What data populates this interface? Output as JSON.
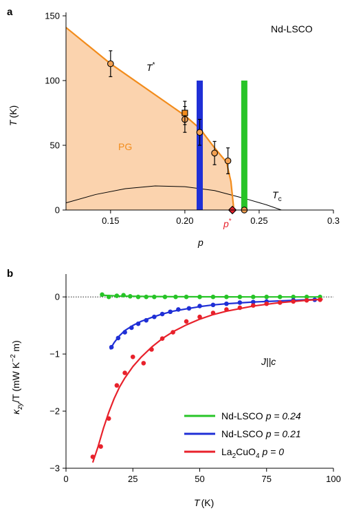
{
  "chart_data": [
    {
      "panel": "a",
      "type": "area",
      "xlabel": "p",
      "ylabel": "T (K)",
      "ylabel_var": "T",
      "ylabel_unit": "(K)",
      "xlim": [
        0.12,
        0.3
      ],
      "ylim": [
        0,
        150
      ],
      "xticks": [
        0.15,
        0.2,
        0.25,
        0.3
      ],
      "xtick_labels": [
        "0.15",
        "0.20",
        "0.25",
        "0.3"
      ],
      "yticks": [
        0,
        50,
        100,
        150
      ],
      "ytick_labels": [
        "0",
        "50",
        "100",
        "150"
      ],
      "corner_label": "Nd-LSCO",
      "region_label": "PG",
      "tstar_label": "T",
      "tc_label": "T",
      "tc_sub": "c",
      "pstar_label": "p",
      "star": "*",
      "tstar_line": [
        [
          0.12,
          141
        ],
        [
          0.15,
          113
        ],
        [
          0.2,
          73
        ],
        [
          0.21,
          63
        ],
        [
          0.22,
          48
        ],
        [
          0.228,
          37
        ],
        [
          0.231,
          22
        ],
        [
          0.233,
          0
        ]
      ],
      "tc_dome": [
        [
          0.12,
          5.5
        ],
        [
          0.14,
          12
        ],
        [
          0.16,
          16.5
        ],
        [
          0.18,
          18.6
        ],
        [
          0.2,
          18
        ],
        [
          0.22,
          15
        ],
        [
          0.24,
          9
        ],
        [
          0.255,
          4
        ],
        [
          0.265,
          0
        ]
      ],
      "points": [
        {
          "p": 0.15,
          "T": 113,
          "err": 10,
          "marker": "circle"
        },
        {
          "p": 0.2,
          "T": 70,
          "err": 10,
          "marker": "circle"
        },
        {
          "p": 0.21,
          "T": 60,
          "err": 10,
          "marker": "circle"
        },
        {
          "p": 0.22,
          "T": 44,
          "err": 9,
          "marker": "circle"
        },
        {
          "p": 0.229,
          "T": 38,
          "err": 10,
          "marker": "circle"
        },
        {
          "p": 0.24,
          "T": 0,
          "err": 0,
          "marker": "circle"
        },
        {
          "p": 0.2,
          "T": 75,
          "err": 9,
          "marker": "square"
        },
        {
          "p": 0.232,
          "T": 0,
          "err": 0,
          "marker": "diamond"
        }
      ],
      "bars": [
        {
          "p": 0.21,
          "T": 100,
          "color": "#1f2fd6"
        },
        {
          "p": 0.24,
          "T": 100,
          "color": "#27c427"
        }
      ],
      "colors": {
        "line": "#f28c1c",
        "fill": "#fbd3ae",
        "marker": "#f2a052",
        "pstar": "#e8212b"
      }
    },
    {
      "panel": "b",
      "type": "scatter",
      "xlabel": "T (K)",
      "xlabel_var": "T",
      "xlabel_unit": "(K)",
      "ylabel_sym": "κ",
      "ylabel_sub": "zy",
      "ylabel_rest": "/T (mW K",
      "ylabel_exp": "−2",
      "ylabel_end": " m)",
      "xlim": [
        0,
        100
      ],
      "ylim": [
        -3,
        0.4
      ],
      "xticks": [
        0,
        25,
        50,
        75,
        100
      ],
      "xtick_labels": [
        "0",
        "25",
        "50",
        "75",
        "100"
      ],
      "yticks": [
        0,
        -1,
        -2,
        -3
      ],
      "ytick_labels": [
        "0",
        "−1",
        "−2",
        "−3"
      ],
      "annotation": "J||c",
      "series": [
        {
          "name": "Nd-LSCO p = 0.24",
          "name_base": "Nd-LSCO",
          "name_p": "p = 0.24",
          "color": "#27c427",
          "x": [
            13.5,
            16,
            19,
            21.5,
            24,
            27,
            30,
            33,
            37,
            41,
            45,
            50,
            55,
            60,
            65,
            70,
            75,
            80,
            85,
            90,
            95
          ],
          "y": [
            0.04,
            0.0,
            0.02,
            0.03,
            0.01,
            0.0,
            0.0,
            0.0,
            0.0,
            0.0,
            0.0,
            0.0,
            0.0,
            0.0,
            0.0,
            0.0,
            0.0,
            0.0,
            0.0,
            0.0,
            0.0
          ],
          "fit_x": [
            13.5,
            20,
            30,
            40,
            50,
            60,
            70,
            80,
            90,
            95
          ],
          "fit_y": [
            0.03,
            0.015,
            0.008,
            0.004,
            0.002,
            0.001,
            0.0,
            0.0,
            0.0,
            0.0
          ]
        },
        {
          "name": "Nd-LSCO p = 0.21",
          "name_base": "Nd-LSCO",
          "name_p": "p = 0.21",
          "color": "#1f2fd6",
          "x": [
            17,
            19.5,
            22,
            24.5,
            27,
            30,
            33,
            36,
            39,
            42,
            46,
            50,
            55,
            60,
            65,
            70,
            75,
            85,
            93
          ],
          "y": [
            -0.88,
            -0.72,
            -0.62,
            -0.54,
            -0.47,
            -0.41,
            -0.35,
            -0.3,
            -0.26,
            -0.22,
            -0.2,
            -0.16,
            -0.14,
            -0.12,
            -0.1,
            -0.09,
            -0.08,
            -0.06,
            -0.05
          ],
          "fit_x": [
            16.5,
            18,
            20,
            22,
            25,
            28,
            32,
            36,
            40,
            45,
            50,
            55,
            60,
            70,
            80,
            90,
            95
          ],
          "fit_y": [
            -0.92,
            -0.8,
            -0.68,
            -0.59,
            -0.5,
            -0.43,
            -0.36,
            -0.3,
            -0.25,
            -0.21,
            -0.17,
            -0.14,
            -0.12,
            -0.09,
            -0.07,
            -0.05,
            -0.045
          ]
        },
        {
          "name": "La2CuO4 p = 0",
          "name_base": "La",
          "name_sub1": "2",
          "name_mid": "CuO",
          "name_sub2": "4",
          "name_p": "p = 0",
          "color": "#e8212b",
          "x": [
            10,
            13,
            16,
            19,
            22,
            25,
            29,
            32,
            36,
            40,
            45,
            50,
            55,
            60,
            65,
            70,
            75,
            80,
            85,
            90,
            95
          ],
          "y": [
            -2.8,
            -2.62,
            -2.13,
            -1.55,
            -1.33,
            -1.05,
            -1.16,
            -0.92,
            -0.73,
            -0.62,
            -0.43,
            -0.35,
            -0.28,
            -0.22,
            -0.19,
            -0.15,
            -0.12,
            -0.1,
            -0.08,
            -0.06,
            -0.05
          ],
          "fit_x": [
            10,
            12,
            14,
            16,
            18,
            20,
            22,
            25,
            28,
            32,
            36,
            40,
            45,
            50,
            55,
            60,
            70,
            80,
            90,
            96
          ],
          "fit_y": [
            -2.9,
            -2.62,
            -2.3,
            -2.02,
            -1.78,
            -1.58,
            -1.42,
            -1.22,
            -1.06,
            -0.88,
            -0.73,
            -0.61,
            -0.49,
            -0.39,
            -0.31,
            -0.25,
            -0.16,
            -0.1,
            -0.06,
            -0.04
          ]
        }
      ]
    }
  ]
}
